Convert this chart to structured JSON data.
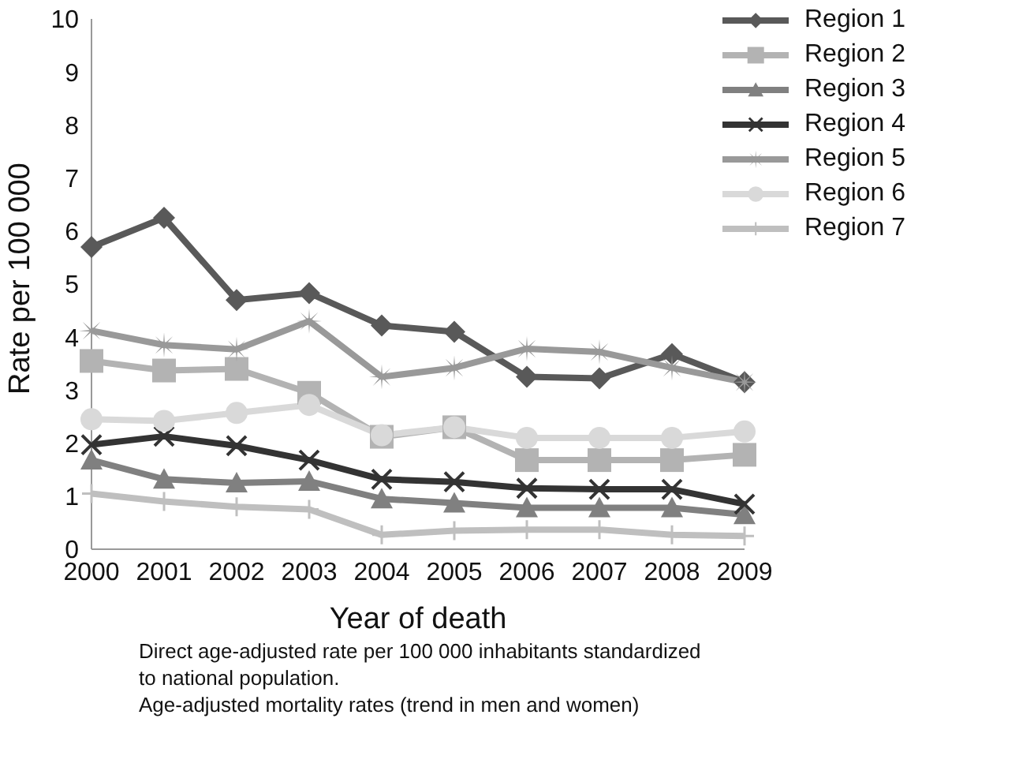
{
  "chart_data": {
    "type": "line",
    "xlabel": "Year of death",
    "ylabel": "Rate per 100 000",
    "categories": [
      "2000",
      "2001",
      "2002",
      "2003",
      "2004",
      "2005",
      "2006",
      "2007",
      "2008",
      "2009"
    ],
    "ylim": [
      0,
      10
    ],
    "yticks": [
      0,
      1,
      2,
      3,
      4,
      5,
      6,
      7,
      8,
      9,
      10
    ],
    "grid": false,
    "legend": "top right",
    "series": [
      {
        "name": "Region 1",
        "color": "#595959",
        "marker": "diamond",
        "values": [
          5.7,
          6.25,
          4.7,
          4.83,
          4.22,
          4.1,
          3.25,
          3.22,
          3.68,
          3.15
        ]
      },
      {
        "name": "Region 2",
        "color": "#b3b3b3",
        "marker": "square",
        "values": [
          3.55,
          3.37,
          3.4,
          2.95,
          2.12,
          2.3,
          1.68,
          1.68,
          1.68,
          1.78
        ]
      },
      {
        "name": "Region 3",
        "color": "#808080",
        "marker": "triangle",
        "values": [
          1.68,
          1.32,
          1.25,
          1.28,
          0.95,
          0.87,
          0.78,
          0.78,
          0.78,
          0.65
        ]
      },
      {
        "name": "Region 4",
        "color": "#333333",
        "marker": "cross",
        "values": [
          1.97,
          2.13,
          1.95,
          1.68,
          1.32,
          1.27,
          1.15,
          1.13,
          1.13,
          0.85
        ]
      },
      {
        "name": "Region 5",
        "color": "#999999",
        "marker": "star",
        "values": [
          4.12,
          3.85,
          3.77,
          4.3,
          3.25,
          3.42,
          3.78,
          3.72,
          3.42,
          3.15
        ]
      },
      {
        "name": "Region 6",
        "color": "#d9d9d9",
        "marker": "circle",
        "values": [
          2.45,
          2.42,
          2.57,
          2.72,
          2.15,
          2.3,
          2.1,
          2.1,
          2.1,
          2.22
        ]
      },
      {
        "name": "Region 7",
        "color": "#bfbfbf",
        "marker": "plus",
        "values": [
          1.05,
          0.9,
          0.8,
          0.75,
          0.27,
          0.35,
          0.37,
          0.37,
          0.27,
          0.25
        ]
      }
    ],
    "annotations": [
      "Direct age-adjusted rate per 100 000 inhabitants standardized to national population.",
      "Age-adjusted mortality rates (trend in men and women)"
    ]
  }
}
